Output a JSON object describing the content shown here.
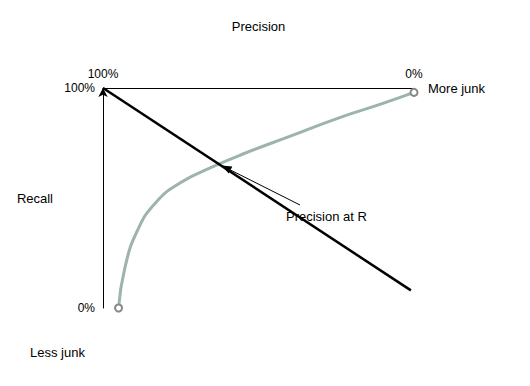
{
  "chart_data": {
    "type": "line",
    "x_label": "Precision",
    "y_label": "Recall",
    "xlim": [
      100,
      0
    ],
    "ylim": [
      0,
      100
    ],
    "xticks": [
      {
        "value": 0,
        "label": "0%"
      },
      {
        "value": 100,
        "label": "100%"
      }
    ],
    "yticks": [
      {
        "value": 0,
        "label": "0%"
      },
      {
        "value": 100,
        "label": "100%"
      }
    ],
    "grid": false,
    "series": [
      {
        "type": "line",
        "color": "#9db3ad",
        "marker": "circle",
        "line_style": "solid",
        "x": [
          95,
          93,
          89,
          83,
          75,
          65,
          55,
          40,
          25,
          10,
          0
        ],
        "values": [
          0,
          18,
          35,
          48,
          57,
          64,
          70,
          78,
          86,
          93,
          98
        ]
      },
      {
        "type": "line",
        "color": "#000000",
        "line_style": "solid",
        "x": [
          100,
          1
        ],
        "values": [
          100,
          8
        ]
      }
    ],
    "annotations": [
      {
        "text": "More junk"
      },
      {
        "text": "Less junk"
      },
      {
        "text": "Precision at R"
      }
    ]
  }
}
